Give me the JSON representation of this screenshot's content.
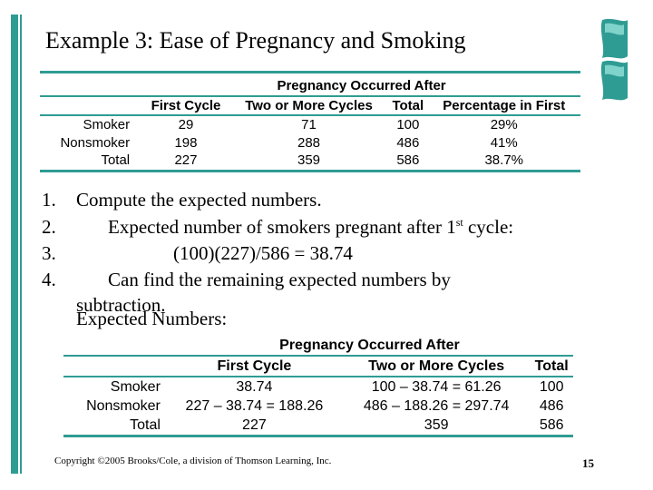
{
  "title": "Example 3: Ease of Pregnancy and Smoking",
  "table1": {
    "group_header": "Pregnancy Occurred After",
    "columns": [
      "First Cycle",
      "Two or More Cycles",
      "Total",
      "Percentage in First"
    ],
    "rows": [
      {
        "label": "Smoker",
        "values": [
          "29",
          "71",
          "100",
          "29%"
        ]
      },
      {
        "label": "Nonsmoker",
        "values": [
          "198",
          "288",
          "486",
          "41%"
        ]
      },
      {
        "label": "Total",
        "values": [
          "227",
          "359",
          "586",
          "38.7%"
        ]
      }
    ]
  },
  "list": [
    {
      "num": "1.",
      "text": "Compute the expected numbers."
    },
    {
      "num": "2.",
      "text_pre": "Expected number of smokers pregnant after 1",
      "sup": "st",
      "text_post": " cycle:"
    },
    {
      "num": "3.",
      "text": "(100)(227)/586 = 38.74"
    },
    {
      "num": "4.",
      "text": "Can find the remaining expected numbers by",
      "text2": "subtraction."
    },
    {
      "text": "Expected Numbers:"
    }
  ],
  "table2": {
    "group_header": "Pregnancy Occurred After",
    "columns": [
      "First Cycle",
      "Two or More Cycles",
      "Total"
    ],
    "rows": [
      {
        "label": "Smoker",
        "values": [
          "38.74",
          "100 – 38.74 = 61.26",
          "100"
        ]
      },
      {
        "label": "Nonsmoker",
        "values": [
          "227 – 38.74 = 188.26",
          "486 – 188.26 = 297.74",
          "486"
        ]
      },
      {
        "label": "Total",
        "values": [
          "227",
          "359",
          "586"
        ]
      }
    ]
  },
  "footer": {
    "copyright": "Copyright ©2005 Brooks/Cole, a division of Thomson Learning, Inc.",
    "page_number": "15"
  },
  "colors": {
    "accent": "#2f9c93"
  }
}
